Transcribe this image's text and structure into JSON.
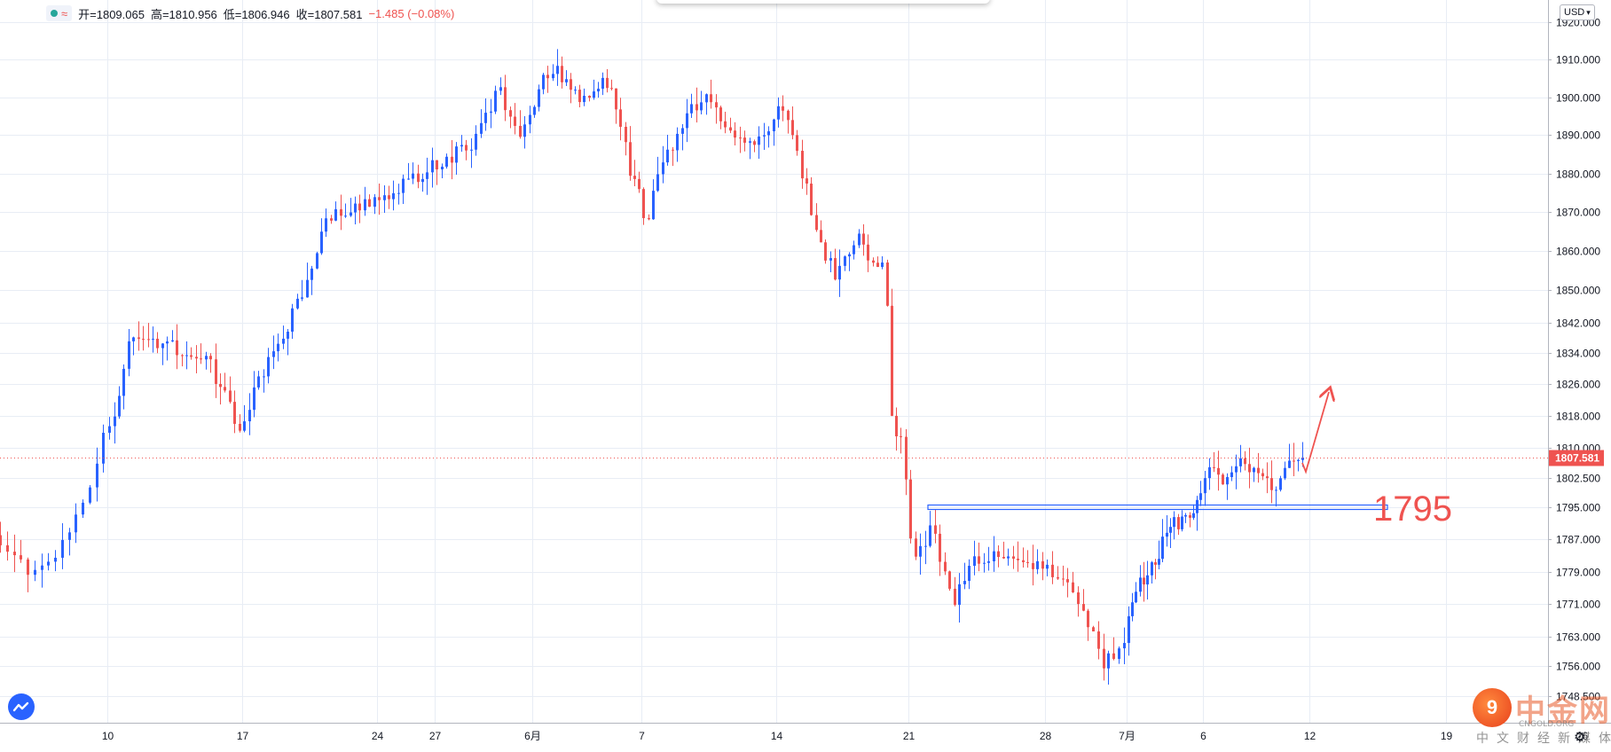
{
  "header": {
    "open_label": "开=1809.065",
    "high_label": "高=1810.956",
    "low_label": "低=1806.946",
    "close_label": "收=1807.581",
    "change_label": "−1.485 (−0.08%)",
    "status_color": "#26a69a"
  },
  "currency": {
    "label": "USD",
    "icon": "chevron-down-icon"
  },
  "annotation": {
    "level_label": "1795",
    "color": "#ef5350",
    "box_color": "#2962ff"
  },
  "watermark": {
    "title": "中金网",
    "subtitle": "CNGOLD.ORG",
    "tagline": "中文财经新媒体",
    "logo_glyph": "9"
  },
  "last_price_label": "1807.581",
  "colors": {
    "up": "#2962ff",
    "down": "#ef5350",
    "grid": "#e8edf5",
    "axis_text": "#131722"
  },
  "chart_data": {
    "type": "candlestick",
    "title": "",
    "xlabel": "",
    "ylabel": "",
    "ylim": [
      1747,
      1922
    ],
    "y_ticks": [
      1920.0,
      1910.0,
      1900.0,
      1890.0,
      1880.0,
      1870.0,
      1860.0,
      1850.0,
      1842.0,
      1834.0,
      1826.0,
      1818.0,
      1810.0,
      1802.5,
      1795.0,
      1787.0,
      1779.0,
      1771.0,
      1763.0,
      1756.0,
      1748.5
    ],
    "y_tick_labels": [
      "1920.000",
      "1910.000",
      "1900.000",
      "1890.000",
      "1880.000",
      "1870.000",
      "1860.000",
      "1850.000",
      "1842.000",
      "1834.000",
      "1826.000",
      "1818.000",
      "1810.000",
      "1802.500",
      "1795.000",
      "1787.000",
      "1779.000",
      "1771.000",
      "1763.000",
      "1756.000",
      "1748.500"
    ],
    "x_ticks": [
      "10",
      "17",
      "24",
      "27",
      "6月",
      "7",
      "14",
      "21",
      "28",
      "7月",
      "6",
      "12",
      "19",
      "26"
    ],
    "x_tick_days": [
      7,
      14,
      21,
      24,
      29,
      35,
      42,
      49,
      56,
      60,
      65,
      71,
      78,
      85
    ],
    "x_range_days": [
      3.1,
      90.0
    ],
    "last_price": 1807.581,
    "horizontal_level": 1795,
    "grid": true,
    "legend": "none",
    "anchors": [
      {
        "day": 3.1,
        "price": 1788
      },
      {
        "day": 4.5,
        "price": 1778
      },
      {
        "day": 5.5,
        "price": 1784
      },
      {
        "day": 6.5,
        "price": 1797
      },
      {
        "day": 7.0,
        "price": 1812
      },
      {
        "day": 7.8,
        "price": 1822
      },
      {
        "day": 8.5,
        "price": 1840
      },
      {
        "day": 10.5,
        "price": 1836
      },
      {
        "day": 12.5,
        "price": 1832
      },
      {
        "day": 14.0,
        "price": 1815
      },
      {
        "day": 15.5,
        "price": 1830
      },
      {
        "day": 17.5,
        "price": 1850
      },
      {
        "day": 18.5,
        "price": 1868
      },
      {
        "day": 21.0,
        "price": 1872
      },
      {
        "day": 23.5,
        "price": 1880
      },
      {
        "day": 26.0,
        "price": 1887
      },
      {
        "day": 27.5,
        "price": 1902
      },
      {
        "day": 28.5,
        "price": 1890
      },
      {
        "day": 30.0,
        "price": 1906
      },
      {
        "day": 30.5,
        "price": 1908
      },
      {
        "day": 32.0,
        "price": 1898
      },
      {
        "day": 33.5,
        "price": 1905
      },
      {
        "day": 34.5,
        "price": 1883
      },
      {
        "day": 35.5,
        "price": 1868
      },
      {
        "day": 36.5,
        "price": 1885
      },
      {
        "day": 37.5,
        "price": 1893
      },
      {
        "day": 38.5,
        "price": 1902
      },
      {
        "day": 40.0,
        "price": 1890
      },
      {
        "day": 41.5,
        "price": 1888
      },
      {
        "day": 42.5,
        "price": 1900
      },
      {
        "day": 43.5,
        "price": 1883
      },
      {
        "day": 44.5,
        "price": 1862
      },
      {
        "day": 45.5,
        "price": 1853
      },
      {
        "day": 46.5,
        "price": 1864
      },
      {
        "day": 47.5,
        "price": 1855
      },
      {
        "day": 48.0,
        "price": 1858
      },
      {
        "day": 48.3,
        "price": 1818
      },
      {
        "day": 49.0,
        "price": 1810
      },
      {
        "day": 49.5,
        "price": 1780
      },
      {
        "day": 50.5,
        "price": 1790
      },
      {
        "day": 51.5,
        "price": 1770
      },
      {
        "day": 52.5,
        "price": 1783
      },
      {
        "day": 54.0,
        "price": 1782
      },
      {
        "day": 56.0,
        "price": 1780
      },
      {
        "day": 57.5,
        "price": 1777
      },
      {
        "day": 58.5,
        "price": 1765
      },
      {
        "day": 59.0,
        "price": 1757
      },
      {
        "day": 59.8,
        "price": 1758
      },
      {
        "day": 60.3,
        "price": 1766
      },
      {
        "day": 61.0,
        "price": 1775
      },
      {
        "day": 62.0,
        "price": 1781
      },
      {
        "day": 63.0,
        "price": 1790
      },
      {
        "day": 64.0,
        "price": 1792
      },
      {
        "day": 65.0,
        "price": 1798
      },
      {
        "day": 65.5,
        "price": 1806
      },
      {
        "day": 66.5,
        "price": 1800
      },
      {
        "day": 67.5,
        "price": 1808
      },
      {
        "day": 68.5,
        "price": 1802
      },
      {
        "day": 69.5,
        "price": 1800
      },
      {
        "day": 70.2,
        "price": 1806
      },
      {
        "day": 70.8,
        "price": 1807.581
      }
    ]
  }
}
